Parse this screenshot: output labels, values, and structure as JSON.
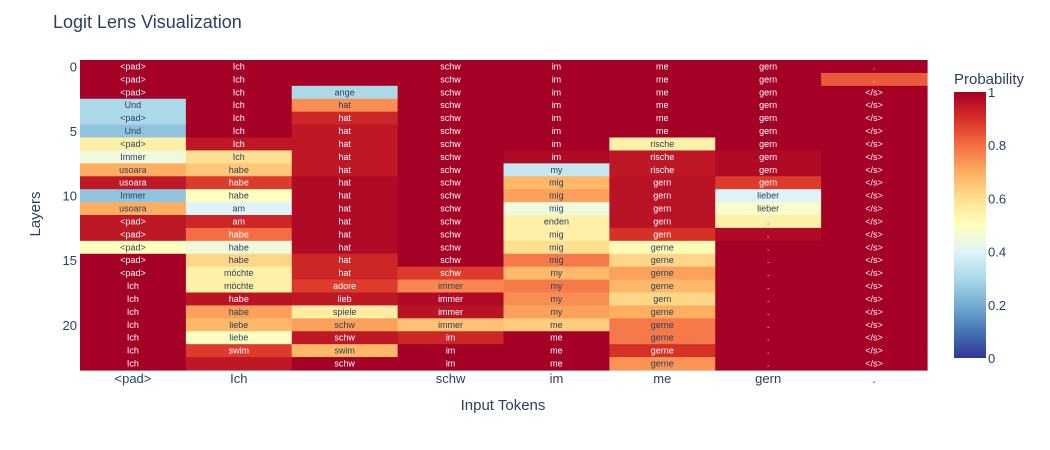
{
  "chart_data": {
    "type": "heatmap",
    "title": "Logit Lens Visualization",
    "xlabel": "Input Tokens",
    "ylabel": "Layers",
    "x_tick_labels": [
      "<pad>",
      "Ich",
      "",
      "schw",
      "im",
      "me",
      "gern",
      "."
    ],
    "y_tick_values": [
      0,
      5,
      10,
      15,
      20
    ],
    "colorbar": {
      "title": "Probability",
      "range": [
        0,
        1
      ],
      "tick_labels": [
        "0",
        "0.2",
        "0.4",
        "0.6",
        "0.8",
        "1"
      ],
      "colorscale": "RdYlBu_r"
    },
    "rows": [
      {
        "layer": 0,
        "tokens": [
          "<pad>",
          "Ich",
          "",
          "schw",
          "im",
          "me",
          "gern",
          "."
        ],
        "values": [
          1.0,
          1.0,
          1.0,
          1.0,
          1.0,
          1.0,
          1.0,
          1.0
        ]
      },
      {
        "layer": 1,
        "tokens": [
          "<pad>",
          "Ich",
          "",
          "schw",
          "im",
          "me",
          "gern",
          "."
        ],
        "values": [
          1.0,
          1.0,
          1.0,
          1.0,
          1.0,
          1.0,
          1.0,
          0.83
        ]
      },
      {
        "layer": 2,
        "tokens": [
          "<pad>",
          "Ich",
          "ange",
          "schw",
          "im",
          "me",
          "gern",
          "</s>"
        ],
        "values": [
          1.0,
          1.0,
          0.3,
          1.0,
          1.0,
          1.0,
          1.0,
          1.0
        ]
      },
      {
        "layer": 3,
        "tokens": [
          "Und",
          "Ich",
          "hat",
          "schw",
          "im",
          "me",
          "gern",
          "</s>"
        ],
        "values": [
          0.3,
          1.0,
          0.75,
          1.0,
          1.0,
          1.0,
          1.0,
          1.0
        ]
      },
      {
        "layer": 4,
        "tokens": [
          "<pad>",
          "Ich",
          "hat",
          "schw",
          "im",
          "me",
          "gern",
          "</s>"
        ],
        "values": [
          0.3,
          1.0,
          0.92,
          1.0,
          1.0,
          1.0,
          1.0,
          1.0
        ]
      },
      {
        "layer": 5,
        "tokens": [
          "Und",
          "Ich",
          "hat",
          "schw",
          "im",
          "me",
          "gern",
          "</s>"
        ],
        "values": [
          0.25,
          1.0,
          0.95,
          1.0,
          1.0,
          1.0,
          1.0,
          1.0
        ]
      },
      {
        "layer": 6,
        "tokens": [
          "<pad>",
          "Ich",
          "hat",
          "schw",
          "im",
          "rische",
          "gern",
          "</s>"
        ],
        "values": [
          0.55,
          0.95,
          0.95,
          1.0,
          1.0,
          0.55,
          1.0,
          1.0
        ]
      },
      {
        "layer": 7,
        "tokens": [
          "Immer",
          "Ich",
          "hat",
          "schw",
          "im",
          "rische",
          "gern",
          "</s>"
        ],
        "values": [
          0.45,
          0.6,
          0.95,
          1.0,
          0.98,
          0.95,
          0.98,
          1.0
        ]
      },
      {
        "layer": 8,
        "tokens": [
          "usoara",
          "habe",
          "hat",
          "schw",
          "my",
          "rische",
          "gern",
          "</s>"
        ],
        "values": [
          0.7,
          0.65,
          0.95,
          1.0,
          0.35,
          0.95,
          0.98,
          1.0
        ]
      },
      {
        "layer": 9,
        "tokens": [
          "usoara",
          "habe",
          "hat",
          "schw",
          "mig",
          "gern",
          "gern",
          "</s>"
        ],
        "values": [
          0.95,
          0.88,
          0.98,
          1.0,
          0.68,
          0.96,
          0.88,
          1.0
        ]
      },
      {
        "layer": 10,
        "tokens": [
          "Immer",
          "habe",
          "hat",
          "schw",
          "mig",
          "gern",
          "lieber",
          "</s>"
        ],
        "values": [
          0.25,
          0.5,
          0.98,
          1.0,
          0.72,
          0.96,
          0.4,
          1.0
        ]
      },
      {
        "layer": 11,
        "tokens": [
          "usoara",
          "am",
          "hat",
          "schw",
          "mig",
          "gern",
          "lieber",
          "</s>"
        ],
        "values": [
          0.7,
          0.4,
          0.98,
          1.0,
          0.45,
          0.96,
          0.48,
          1.0
        ]
      },
      {
        "layer": 12,
        "tokens": [
          "<pad>",
          "am",
          "hat",
          "schw",
          "enden",
          "gern",
          ".",
          "</s>"
        ],
        "values": [
          0.95,
          0.92,
          0.98,
          1.0,
          0.55,
          0.96,
          0.55,
          1.0
        ]
      },
      {
        "layer": 13,
        "tokens": [
          "<pad>",
          "habe",
          "hat",
          "schw",
          "mig",
          "gern",
          ".",
          "</s>"
        ],
        "values": [
          0.95,
          0.8,
          0.98,
          1.0,
          0.55,
          0.9,
          0.98,
          1.0
        ]
      },
      {
        "layer": 14,
        "tokens": [
          "<pad>",
          "habe",
          "hat",
          "schw",
          "mig",
          "gerne",
          ".",
          "</s>"
        ],
        "values": [
          0.5,
          0.45,
          0.98,
          1.0,
          0.6,
          0.52,
          1.0,
          1.0
        ]
      },
      {
        "layer": 15,
        "tokens": [
          "<pad>",
          "habe",
          "hat",
          "schw",
          "mig",
          "gerne",
          ".",
          "</s>"
        ],
        "values": [
          1.0,
          0.62,
          0.92,
          1.0,
          0.78,
          0.62,
          1.0,
          1.0
        ]
      },
      {
        "layer": 16,
        "tokens": [
          "<pad>",
          "möchte",
          "hat",
          "schw",
          "my",
          "gerne",
          ".",
          "</s>"
        ],
        "values": [
          1.0,
          0.55,
          0.92,
          0.88,
          0.68,
          0.72,
          1.0,
          1.0
        ]
      },
      {
        "layer": 17,
        "tokens": [
          "Ich",
          "möchte",
          "adore",
          "immer",
          "my",
          "gerne",
          ".",
          "</s>"
        ],
        "values": [
          1.0,
          0.55,
          0.88,
          0.76,
          0.78,
          0.68,
          1.0,
          1.0
        ]
      },
      {
        "layer": 18,
        "tokens": [
          "Ich",
          "habe",
          "lieb",
          "immer",
          "my",
          "gern",
          ".",
          "</s>"
        ],
        "values": [
          1.0,
          0.96,
          0.95,
          0.98,
          0.75,
          0.62,
          1.0,
          1.0
        ]
      },
      {
        "layer": 19,
        "tokens": [
          "Ich",
          "habe",
          "spiele",
          "immer",
          "my",
          "gerne",
          ".",
          "</s>"
        ],
        "values": [
          1.0,
          0.72,
          0.56,
          0.96,
          0.72,
          0.7,
          1.0,
          1.0
        ]
      },
      {
        "layer": 20,
        "tokens": [
          "Ich",
          "liebe",
          "schw",
          "immer",
          "me",
          "gerne",
          ".",
          "</s>"
        ],
        "values": [
          1.0,
          0.68,
          0.72,
          0.66,
          0.64,
          0.78,
          1.0,
          1.0
        ]
      },
      {
        "layer": 21,
        "tokens": [
          "Ich",
          "liebe",
          "schw",
          "im",
          "me",
          "gerne",
          ".",
          "</s>"
        ],
        "values": [
          1.0,
          0.5,
          0.95,
          0.92,
          1.0,
          0.78,
          1.0,
          1.0
        ]
      },
      {
        "layer": 22,
        "tokens": [
          "Ich",
          "swim",
          "swim",
          "im",
          "me",
          "gerne",
          ".",
          "</s>"
        ],
        "values": [
          1.0,
          0.88,
          0.68,
          1.0,
          1.0,
          0.9,
          1.0,
          1.0
        ]
      },
      {
        "layer": 23,
        "tokens": [
          "Ich",
          "",
          "schw",
          "im",
          "me",
          "gerne",
          ".",
          "</s>"
        ],
        "values": [
          1.0,
          0.95,
          1.0,
          1.0,
          1.0,
          0.74,
          1.0,
          1.0
        ]
      }
    ]
  }
}
